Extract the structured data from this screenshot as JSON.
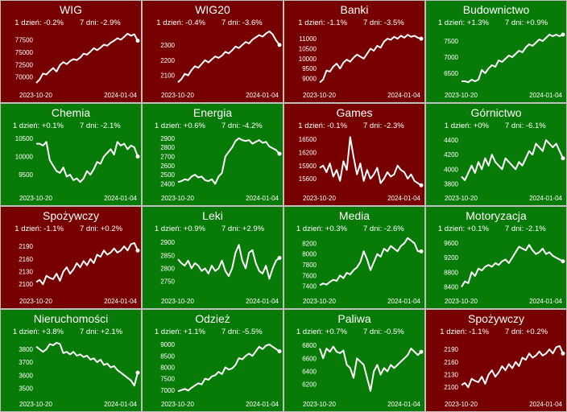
{
  "colors": {
    "up": "#087a08",
    "down": "#770000",
    "line": "#ffffff"
  },
  "chart_data": [
    {
      "type": "line",
      "title": "WIG",
      "day1": "1 dzień: -0.2%",
      "day7": "7 dni: -2.9%",
      "xstart": "2023-10-20",
      "xend": "2024-01-04",
      "yticks": [
        70000,
        72500,
        75000,
        77500
      ],
      "ylim": [
        68500,
        79500
      ],
      "trend": "down",
      "values": [
        68800,
        69500,
        70700,
        70500,
        71200,
        71800,
        71100,
        72400,
        73000,
        72600,
        73200,
        73600,
        73400,
        73900,
        74700,
        74500,
        75100,
        75800,
        75400,
        75900,
        76500,
        76300,
        76900,
        77300,
        77800,
        77500,
        78100,
        78700,
        78300,
        78600,
        77300
      ]
    },
    {
      "type": "line",
      "title": "WIG20",
      "day1": "1 dzień: -0.4%",
      "day7": "7 dni: -3.6%",
      "xstart": "2023-10-20",
      "xend": "2024-01-04",
      "yticks": [
        2100,
        2200,
        2300
      ],
      "ylim": [
        2040,
        2400
      ],
      "trend": "down",
      "values": [
        2055,
        2075,
        2110,
        2100,
        2135,
        2160,
        2150,
        2175,
        2200,
        2185,
        2205,
        2225,
        2215,
        2230,
        2255,
        2245,
        2265,
        2290,
        2280,
        2300,
        2320,
        2310,
        2335,
        2350,
        2365,
        2355,
        2375,
        2390,
        2370,
        2330,
        2300
      ]
    },
    {
      "type": "line",
      "title": "Banki",
      "day1": "1 dzień: -1.1%",
      "day7": "7 dni: -3.5%",
      "xstart": "2023-10-20",
      "xend": "2024-01-04",
      "yticks": [
        9000,
        9500,
        10000,
        10500,
        11000
      ],
      "ylim": [
        8700,
        11450
      ],
      "trend": "down",
      "values": [
        8800,
        8950,
        9400,
        9350,
        9600,
        9750,
        9500,
        9800,
        9950,
        9850,
        10050,
        10200,
        10100,
        10000,
        10250,
        10500,
        10400,
        10650,
        10550,
        10850,
        11000,
        10950,
        11100,
        11000,
        11150,
        11050,
        11200,
        11100,
        11150,
        11050,
        11000
      ]
    },
    {
      "type": "line",
      "title": "Budownictwo",
      "day1": "1 dzień: +1.3%",
      "day7": "7 dni: +0.9%",
      "xstart": "2023-10-20",
      "xend": "2024-01-04",
      "yticks": [
        6500,
        7000,
        7500
      ],
      "ylim": [
        6150,
        7850
      ],
      "trend": "up",
      "values": [
        6250,
        6250,
        6220,
        6300,
        6250,
        6300,
        6600,
        6500,
        6650,
        6750,
        6700,
        6900,
        6850,
        6950,
        7050,
        7000,
        7100,
        7200,
        7150,
        7300,
        7400,
        7350,
        7450,
        7550,
        7500,
        7600,
        7700,
        7650,
        7700,
        7650,
        7700
      ]
    },
    {
      "type": "line",
      "title": "Chemia",
      "day1": "1 dzień: +0.1%",
      "day7": "7 dni: -2.1%",
      "xstart": "2023-10-20",
      "xend": "2024-01-04",
      "yticks": [
        9500,
        10000,
        10500
      ],
      "ylim": [
        9150,
        10650
      ],
      "trend": "up",
      "values": [
        10350,
        10350,
        10300,
        10400,
        9900,
        9750,
        9600,
        9550,
        9700,
        9450,
        9500,
        9350,
        9400,
        9300,
        9400,
        9600,
        9500,
        9650,
        9850,
        9800,
        10000,
        10100,
        10200,
        10050,
        10400,
        10300,
        10350,
        10200,
        10300,
        10250,
        10000
      ]
    },
    {
      "type": "line",
      "title": "Energia",
      "day1": "1 dzień: +0.6%",
      "day7": "7 dni: -4.2%",
      "xstart": "2023-10-20",
      "xend": "2024-01-04",
      "yticks": [
        2400,
        2500,
        2600,
        2700,
        2800,
        2900
      ],
      "ylim": [
        2360,
        2960
      ],
      "trend": "up",
      "values": [
        2420,
        2430,
        2450,
        2440,
        2480,
        2500,
        2470,
        2480,
        2440,
        2430,
        2450,
        2400,
        2480,
        2520,
        2700,
        2750,
        2800,
        2870,
        2900,
        2880,
        2870,
        2880,
        2840,
        2860,
        2880,
        2850,
        2860,
        2810,
        2790,
        2770,
        2730
      ]
    },
    {
      "type": "line",
      "title": "Games",
      "day1": "1 dzień: -0.1%",
      "day7": "7 dni: -2.3%",
      "xstart": "2023-10-20",
      "xend": "2024-01-04",
      "yticks": [
        15600,
        15900,
        16200,
        16500
      ],
      "ylim": [
        15400,
        16650
      ],
      "trend": "down",
      "values": [
        15850,
        15900,
        15750,
        15950,
        15650,
        15800,
        15550,
        16000,
        15800,
        16550,
        16100,
        15700,
        15950,
        15550,
        15800,
        15600,
        15700,
        15850,
        15500,
        15600,
        15750,
        15650,
        15700,
        15900,
        15800,
        15750,
        15600,
        15700,
        15550,
        15500,
        15450
      ]
    },
    {
      "type": "line",
      "title": "Górnictwo",
      "day1": "1 dzień: +0%",
      "day7": "7 dni: -6.1%",
      "xstart": "2023-10-20",
      "xend": "2024-01-04",
      "yticks": [
        3800,
        4000,
        4200,
        4400
      ],
      "ylim": [
        3750,
        4500
      ],
      "trend": "up",
      "values": [
        3900,
        3850,
        3950,
        4050,
        3950,
        4100,
        4000,
        4150,
        4050,
        4200,
        4100,
        4050,
        4000,
        4150,
        4100,
        4050,
        4000,
        4100,
        4050,
        4150,
        4250,
        4200,
        4350,
        4300,
        4250,
        4400,
        4350,
        4300,
        4350,
        4250,
        4150
      ]
    },
    {
      "type": "line",
      "title": "Spożywczy",
      "day1": "1 dzień: -1.1%",
      "day7": "7 dni: +0.2%",
      "xstart": "2023-10-20",
      "xend": "2024-01-04",
      "yticks": [
        2100,
        2130,
        2160,
        2190
      ],
      "ylim": [
        2085,
        2215
      ],
      "trend": "down",
      "values": [
        2105,
        2110,
        2100,
        2120,
        2115,
        2112,
        2125,
        2108,
        2130,
        2140,
        2125,
        2135,
        2150,
        2140,
        2155,
        2145,
        2160,
        2150,
        2170,
        2165,
        2180,
        2170,
        2175,
        2185,
        2175,
        2180,
        2190,
        2180,
        2195,
        2198,
        2180
      ]
    },
    {
      "type": "line",
      "title": "Leki",
      "day1": "1 dzień: +0.9%",
      "day7": "7 dni: +2.9%",
      "xstart": "2023-10-20",
      "xend": "2024-01-04",
      "yticks": [
        2750,
        2800,
        2850,
        2900
      ],
      "ylim": [
        2715,
        2925
      ],
      "trend": "up",
      "values": [
        2835,
        2820,
        2810,
        2830,
        2800,
        2820,
        2810,
        2790,
        2800,
        2780,
        2810,
        2790,
        2800,
        2830,
        2790,
        2770,
        2800,
        2860,
        2890,
        2830,
        2800,
        2860,
        2870,
        2820,
        2790,
        2780,
        2810,
        2760,
        2800,
        2830,
        2840
      ]
    },
    {
      "type": "line",
      "title": "Media",
      "day1": "1 dzień: +0.3%",
      "day7": "7 dni: -2.6%",
      "xstart": "2023-10-20",
      "xend": "2024-01-04",
      "yticks": [
        7400,
        7600,
        7800,
        8000,
        8200
      ],
      "ylim": [
        7320,
        8340
      ],
      "trend": "up",
      "values": [
        7420,
        7450,
        7430,
        7480,
        7520,
        7500,
        7600,
        7550,
        7650,
        7620,
        7700,
        7750,
        7850,
        8050,
        7900,
        7700,
        7850,
        8000,
        7950,
        8100,
        8050,
        8150,
        8100,
        8050,
        8150,
        8200,
        8300,
        8250,
        8200,
        8050,
        8050
      ]
    },
    {
      "type": "line",
      "title": "Motoryzacja",
      "day1": "1 dzień: +0.1%",
      "day7": "7 dni: -2.1%",
      "xstart": "2023-10-20",
      "xend": "2024-01-04",
      "yticks": [
        8400,
        8800,
        9200,
        9600
      ],
      "ylim": [
        8300,
        9800
      ],
      "trend": "up",
      "values": [
        8400,
        8550,
        8500,
        8800,
        8700,
        8900,
        8850,
        8950,
        9000,
        8950,
        9050,
        9000,
        9100,
        9150,
        9050,
        9200,
        9350,
        9500,
        9450,
        9400,
        9550,
        9400,
        9300,
        9350,
        9450,
        9300,
        9350,
        9250,
        9200,
        9150,
        9100
      ]
    },
    {
      "type": "line",
      "title": "Nieruchomości",
      "day1": "1 dzień: +3.8%",
      "day7": "7 dni: +2.1%",
      "xstart": "2023-10-20",
      "xend": "2024-01-04",
      "yticks": [
        3500,
        3600,
        3700,
        3800
      ],
      "ylim": [
        3460,
        3880
      ],
      "trend": "up",
      "values": [
        3820,
        3800,
        3780,
        3800,
        3840,
        3830,
        3850,
        3840,
        3770,
        3780,
        3760,
        3780,
        3750,
        3760,
        3740,
        3750,
        3720,
        3730,
        3700,
        3720,
        3680,
        3690,
        3660,
        3670,
        3640,
        3620,
        3600,
        3580,
        3560,
        3520,
        3620
      ]
    },
    {
      "type": "line",
      "title": "Odzież",
      "day1": "1 dzień: +1.1%",
      "day7": "7 dni: -5.5%",
      "xstart": "2023-10-20",
      "xend": "2024-01-04",
      "yticks": [
        7000,
        7500,
        8000,
        8500,
        9000
      ],
      "ylim": [
        6850,
        9250
      ],
      "trend": "up",
      "values": [
        6950,
        7000,
        7050,
        6980,
        7100,
        7200,
        7300,
        7250,
        7500,
        7450,
        7600,
        7650,
        7800,
        7700,
        8000,
        7900,
        7950,
        8100,
        8400,
        8350,
        8500,
        8600,
        8500,
        8700,
        8900,
        8800,
        8950,
        9000,
        8900,
        8800,
        8700
      ]
    },
    {
      "type": "line",
      "title": "Paliwa",
      "day1": "1 dzień: +0.7%",
      "day7": "7 dni: -0.5%",
      "xstart": "2023-10-20",
      "xend": "2024-01-04",
      "yticks": [
        6200,
        6400,
        6600,
        6800
      ],
      "ylim": [
        6060,
        6900
      ],
      "trend": "up",
      "values": [
        6750,
        6600,
        6750,
        6700,
        6780,
        6700,
        6680,
        6720,
        6500,
        6450,
        6300,
        6600,
        6550,
        6500,
        6300,
        6100,
        6400,
        6500,
        6350,
        6450,
        6400,
        6500,
        6450,
        6500,
        6550,
        6600,
        6650,
        6750,
        6700,
        6650,
        6700
      ]
    },
    {
      "type": "line",
      "title": "Spożywczy",
      "day1": "1 dzień: -1.1%",
      "day7": "7 dni: +0.2%",
      "xstart": "2023-10-20",
      "xend": "2024-01-04",
      "yticks": [
        2100,
        2130,
        2160,
        2190
      ],
      "ylim": [
        2085,
        2215
      ],
      "trend": "down",
      "values": [
        2105,
        2110,
        2100,
        2120,
        2115,
        2112,
        2125,
        2108,
        2130,
        2140,
        2125,
        2135,
        2150,
        2140,
        2155,
        2145,
        2160,
        2150,
        2170,
        2165,
        2180,
        2170,
        2175,
        2185,
        2175,
        2180,
        2190,
        2180,
        2195,
        2198,
        2180
      ]
    }
  ]
}
